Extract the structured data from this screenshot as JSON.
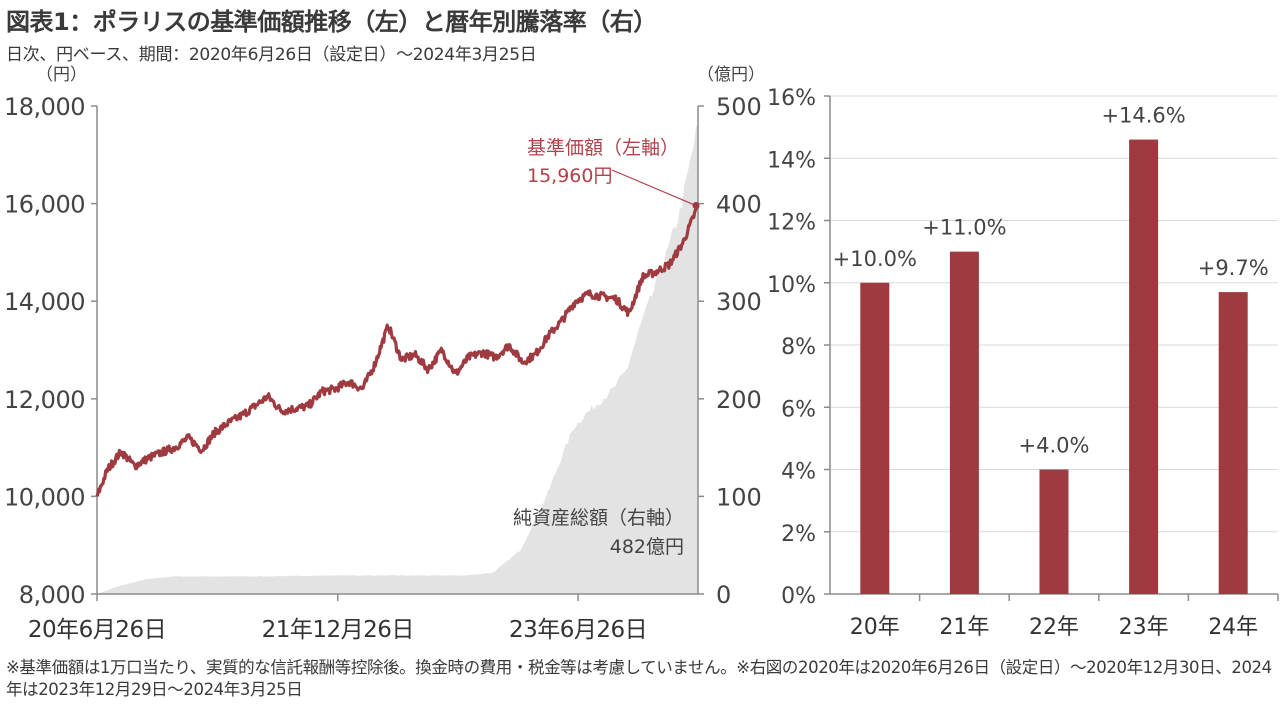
{
  "header": {
    "title": "図表1：ポラリスの基準価額推移（左）と暦年別騰落率（右）",
    "subtitle": "日次、円ベース、期間：2020年6月26日（設定日）～2024年3月25日"
  },
  "footnote": "※基準価額は1万口当たり、実質的な信託報酬等控除後。換金時の費用・税金等は考慮していません。※右図の2020年は2020年6月26日（設定日）～2020年12月30日、2024年は2023年12月29日～2024年3月25日",
  "colors": {
    "nav_line": "#9e3a40",
    "bar": "#9e3a40",
    "aum_area": "#e3e3e3",
    "axis": "#8c8c8c",
    "grid": "#d9d9d9",
    "annotation": "#b0424a"
  },
  "chart_data": [
    {
      "type": "line",
      "left_unit": "（円）",
      "right_unit": "（億円）",
      "left_ticks": [
        "8,000",
        "10,000",
        "12,000",
        "14,000",
        "16,000",
        "18,000"
      ],
      "right_ticks": [
        "0",
        "100",
        "200",
        "300",
        "400",
        "500"
      ],
      "ylim_left": [
        8000,
        18000
      ],
      "ylim_right": [
        0,
        500
      ],
      "x_tick_labels": [
        "20年6月26日",
        "21年12月26日",
        "23年6月26日"
      ],
      "x_tick_dates": [
        "2020-06-26",
        "2021-12-26",
        "2023-06-26"
      ],
      "x_range": [
        "2020-06-26",
        "2024-03-25"
      ],
      "series": [
        {
          "name": "基準価額（左軸）",
          "axis": "left",
          "style": "line",
          "points": [
            [
              "2020-06-26",
              10000
            ],
            [
              "2020-07-20",
              10550
            ],
            [
              "2020-08-20",
              10920
            ],
            [
              "2020-09-20",
              10620
            ],
            [
              "2020-10-20",
              10780
            ],
            [
              "2020-11-20",
              10900
            ],
            [
              "2020-12-20",
              11000
            ],
            [
              "2021-01-20",
              11200
            ],
            [
              "2021-02-20",
              10950
            ],
            [
              "2021-03-20",
              11300
            ],
            [
              "2021-04-20",
              11500
            ],
            [
              "2021-05-20",
              11650
            ],
            [
              "2021-06-20",
              11850
            ],
            [
              "2021-07-20",
              12050
            ],
            [
              "2021-08-20",
              11750
            ],
            [
              "2021-09-20",
              11800
            ],
            [
              "2021-10-20",
              11850
            ],
            [
              "2021-11-20",
              12150
            ],
            [
              "2021-12-20",
              12200
            ],
            [
              "2022-01-20",
              12350
            ],
            [
              "2022-02-20",
              12200
            ],
            [
              "2022-03-20",
              12700
            ],
            [
              "2022-04-20",
              13500
            ],
            [
              "2022-05-20",
              12800
            ],
            [
              "2022-06-20",
              12900
            ],
            [
              "2022-07-20",
              12600
            ],
            [
              "2022-08-20",
              13000
            ],
            [
              "2022-09-20",
              12500
            ],
            [
              "2022-10-20",
              12850
            ],
            [
              "2022-11-20",
              12950
            ],
            [
              "2022-12-20",
              12850
            ],
            [
              "2023-01-20",
              13100
            ],
            [
              "2023-02-20",
              12750
            ],
            [
              "2023-03-20",
              12900
            ],
            [
              "2023-04-20",
              13300
            ],
            [
              "2023-05-20",
              13600
            ],
            [
              "2023-06-20",
              14000
            ],
            [
              "2023-07-20",
              14150
            ],
            [
              "2023-08-20",
              14100
            ],
            [
              "2023-09-20",
              14050
            ],
            [
              "2023-10-20",
              13750
            ],
            [
              "2023-11-20",
              14500
            ],
            [
              "2023-12-20",
              14600
            ],
            [
              "2024-01-20",
              14750
            ],
            [
              "2024-02-20",
              15200
            ],
            [
              "2024-03-25",
              15960
            ]
          ]
        },
        {
          "name": "純資産総額（右軸）",
          "axis": "right",
          "style": "area",
          "points": [
            [
              "2020-06-26",
              0
            ],
            [
              "2020-08-15",
              8
            ],
            [
              "2020-10-15",
              15
            ],
            [
              "2020-12-15",
              18
            ],
            [
              "2021-06-15",
              18
            ],
            [
              "2021-12-15",
              19
            ],
            [
              "2022-06-15",
              19
            ],
            [
              "2022-10-15",
              19
            ],
            [
              "2022-12-15",
              22
            ],
            [
              "2023-02-15",
              45
            ],
            [
              "2023-04-15",
              100
            ],
            [
              "2023-05-15",
              135
            ],
            [
              "2023-06-15",
              170
            ],
            [
              "2023-07-15",
              185
            ],
            [
              "2023-09-15",
              210
            ],
            [
              "2023-10-15",
              230
            ],
            [
              "2023-11-15",
              275
            ],
            [
              "2023-12-15",
              310
            ],
            [
              "2024-01-15",
              350
            ],
            [
              "2024-02-15",
              395
            ],
            [
              "2024-03-25",
              482
            ]
          ]
        }
      ],
      "annotations": {
        "nav_label": "基準価額（左軸）",
        "nav_value": "15,960円",
        "aum_label": "純資産総額（右軸）",
        "aum_value": "482億円"
      }
    },
    {
      "type": "bar",
      "categories": [
        "20年",
        "21年",
        "22年",
        "23年",
        "24年"
      ],
      "values": [
        10.0,
        11.0,
        4.0,
        14.6,
        9.7
      ],
      "value_labels": [
        "+10.0%",
        "+11.0%",
        "+4.0%",
        "+14.6%",
        "+9.7%"
      ],
      "y_ticks": [
        "0%",
        "2%",
        "4%",
        "6%",
        "8%",
        "10%",
        "12%",
        "14%",
        "16%"
      ],
      "ylim": [
        0,
        16
      ],
      "grid": true
    }
  ]
}
